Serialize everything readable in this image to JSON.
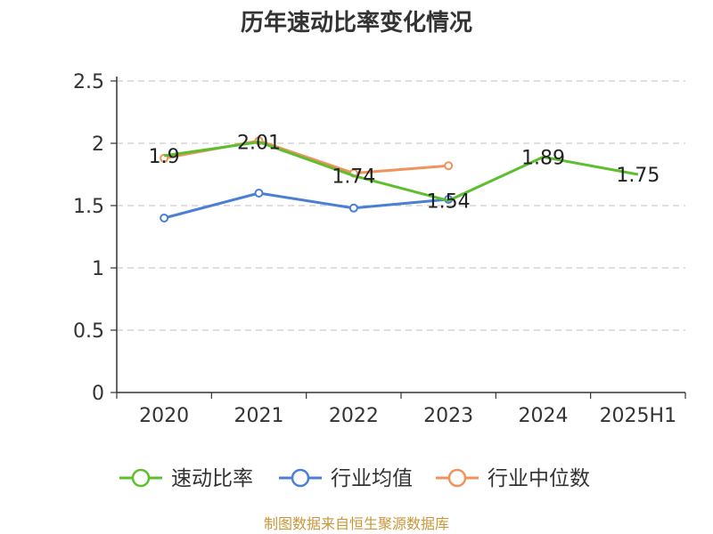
{
  "chart_data": {
    "type": "line",
    "title": "历年速动比率变化情况",
    "categories": [
      "2020",
      "2021",
      "2022",
      "2023",
      "2024",
      "2025H1"
    ],
    "ylim": [
      0,
      2.5
    ],
    "yticks": [
      "0",
      "0.5",
      "1",
      "1.5",
      "2",
      "2.5"
    ],
    "grid": true,
    "legend_position": "bottom",
    "series": [
      {
        "name": "速动比率",
        "color": "#5dbf2e",
        "values": [
          1.9,
          2.01,
          1.74,
          1.54,
          1.89,
          1.75
        ],
        "labels": [
          "1.9",
          "2.01",
          "1.74",
          "1.54",
          "1.89",
          "1.75"
        ]
      },
      {
        "name": "行业均值",
        "color": "#4a7fd4",
        "values": [
          1.4,
          1.6,
          1.48,
          1.55,
          null,
          null
        ]
      },
      {
        "name": "行业中位数",
        "color": "#f0935a",
        "values": [
          1.88,
          2.02,
          1.76,
          1.82,
          null,
          null
        ]
      }
    ]
  },
  "source": "制图数据来自恒生聚源数据库"
}
